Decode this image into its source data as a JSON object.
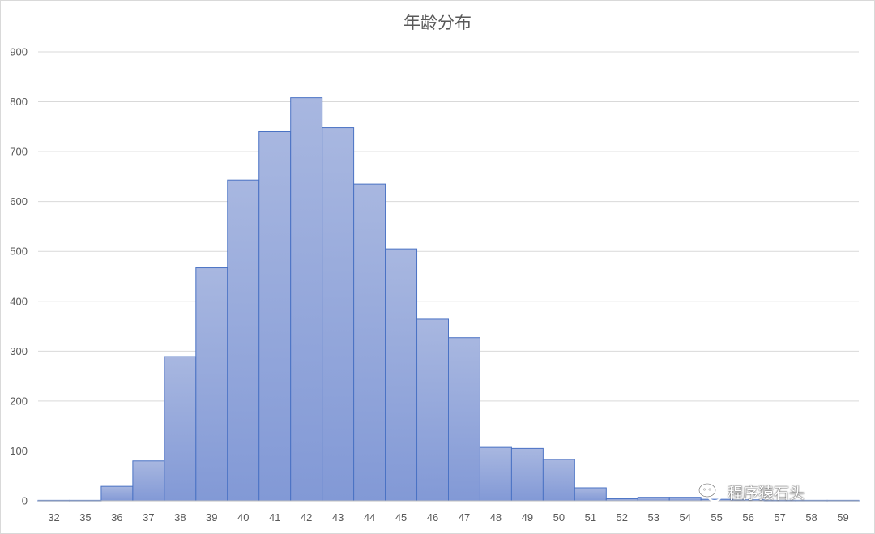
{
  "chart_data": {
    "type": "bar",
    "title": "年龄分布",
    "xlabel": "",
    "ylabel": "",
    "categories": [
      "32",
      "35",
      "36",
      "37",
      "38",
      "39",
      "40",
      "41",
      "42",
      "43",
      "44",
      "45",
      "46",
      "47",
      "48",
      "49",
      "50",
      "51",
      "52",
      "53",
      "54",
      "55",
      "56",
      "57",
      "58",
      "59"
    ],
    "series": [
      {
        "values": [
          1,
          1,
          29,
          80,
          289,
          467,
          643,
          740,
          808,
          748,
          635,
          505,
          364,
          327,
          107,
          105,
          83,
          26,
          4,
          7,
          7,
          3,
          2,
          1,
          1,
          1
        ]
      }
    ],
    "ylim": [
      0,
      900
    ],
    "yticks": [
      0,
      100,
      200,
      300,
      400,
      500,
      600,
      700,
      800,
      900
    ],
    "grid": true,
    "legend": "none",
    "colors": {
      "bar_top": "#a8b7e0",
      "bar_bottom": "#8299d6",
      "bar_stroke": "#4a72c4",
      "grid": "#d9d9d9",
      "axis": "#bfbfbf"
    }
  },
  "watermark": {
    "icon": "wechat-icon",
    "text": "程序猿石头"
  }
}
